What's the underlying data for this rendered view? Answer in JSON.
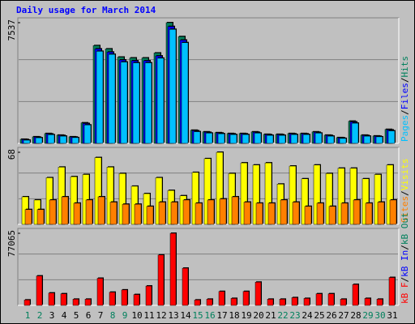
{
  "title": "Daily usage for March 2014",
  "separator": "/",
  "chart_data": [
    {
      "type": "bar",
      "ylim": [
        0,
        7537
      ],
      "yticks": [
        7537
      ],
      "series": [
        {
          "name": "Hits",
          "color": "#00805C",
          "values": [
            256,
            410,
            615,
            513,
            410,
            1282,
            6105,
            5900,
            5387,
            5336,
            5336,
            5644,
            7537,
            6669,
            820,
            718,
            667,
            615,
            615,
            718,
            564,
            564,
            615,
            615,
            718,
            513,
            359,
            1385,
            513,
            462,
            872
          ]
        },
        {
          "name": "Files",
          "color": "#0000FF",
          "values": [
            240,
            390,
            590,
            495,
            395,
            1240,
            5900,
            5700,
            5210,
            5160,
            5160,
            5460,
            7300,
            6450,
            790,
            690,
            645,
            595,
            595,
            690,
            545,
            545,
            595,
            595,
            690,
            495,
            345,
            1340,
            495,
            445,
            840
          ]
        },
        {
          "name": "Pages",
          "color": "#00C0FF",
          "values": [
            200,
            350,
            540,
            450,
            360,
            1150,
            5750,
            5560,
            5080,
            5030,
            5030,
            5320,
            7120,
            6290,
            730,
            640,
            600,
            550,
            550,
            640,
            500,
            500,
            550,
            550,
            640,
            450,
            310,
            1260,
            450,
            410,
            780
          ]
        }
      ]
    },
    {
      "type": "bar",
      "ylim": [
        0,
        68
      ],
      "yticks": [
        68
      ],
      "series": [
        {
          "name": "Visits",
          "color": "#FFFF00",
          "values": [
            26,
            23,
            44,
            54,
            45,
            47,
            63,
            54,
            48,
            36,
            29,
            44,
            32,
            27,
            49,
            62,
            68,
            48,
            58,
            56,
            58,
            38,
            55,
            43,
            56,
            48,
            53,
            53,
            43,
            47,
            56
          ]
        },
        {
          "name": "Sites",
          "color": "#FF8000",
          "values": [
            14,
            14,
            23,
            26,
            20,
            23,
            26,
            21,
            19,
            19,
            17,
            21,
            21,
            23,
            20,
            23,
            24,
            26,
            21,
            20,
            20,
            23,
            21,
            17,
            20,
            17,
            20,
            23,
            20,
            21,
            23
          ]
        }
      ]
    },
    {
      "type": "bar",
      "ylim": [
        0,
        77065
      ],
      "yticks": [
        77065
      ],
      "categories": [
        "1",
        "2",
        "3",
        "4",
        "5",
        "6",
        "7",
        "8",
        "9",
        "10",
        "11",
        "12",
        "13",
        "14",
        "15",
        "16",
        "17",
        "18",
        "19",
        "20",
        "21",
        "22",
        "23",
        "24",
        "25",
        "26",
        "27",
        "28",
        "29",
        "30",
        "31"
      ],
      "highlight": [
        0,
        1,
        7,
        8,
        14,
        15,
        21,
        22,
        28,
        29
      ],
      "highlight_color": "#00805C",
      "series": [
        {
          "name": "kB F",
          "color": "#FF0000",
          "values": [
            5800,
            31490,
            13260,
            12430,
            6630,
            6630,
            29000,
            14090,
            16570,
            11600,
            20720,
            53870,
            77065,
            39780,
            5800,
            6630,
            14920,
            7460,
            14920,
            24860,
            6630,
            6630,
            8290,
            7460,
            12430,
            12430,
            6630,
            22380,
            7460,
            6630,
            29830
          ]
        },
        {
          "name": "kB In",
          "color": "#0000FF",
          "values": [
            0,
            0,
            0,
            0,
            0,
            0,
            0,
            0,
            0,
            0,
            0,
            0,
            0,
            0,
            0,
            0,
            0,
            0,
            0,
            0,
            0,
            0,
            0,
            0,
            0,
            0,
            0,
            0,
            0,
            0,
            0
          ]
        },
        {
          "name": "kB Out",
          "color": "#00805C",
          "values": [
            0,
            0,
            0,
            0,
            0,
            0,
            0,
            0,
            0,
            0,
            0,
            0,
            0,
            0,
            0,
            0,
            0,
            0,
            0,
            0,
            0,
            0,
            0,
            0,
            0,
            0,
            0,
            0,
            0,
            0,
            0
          ]
        }
      ]
    }
  ]
}
